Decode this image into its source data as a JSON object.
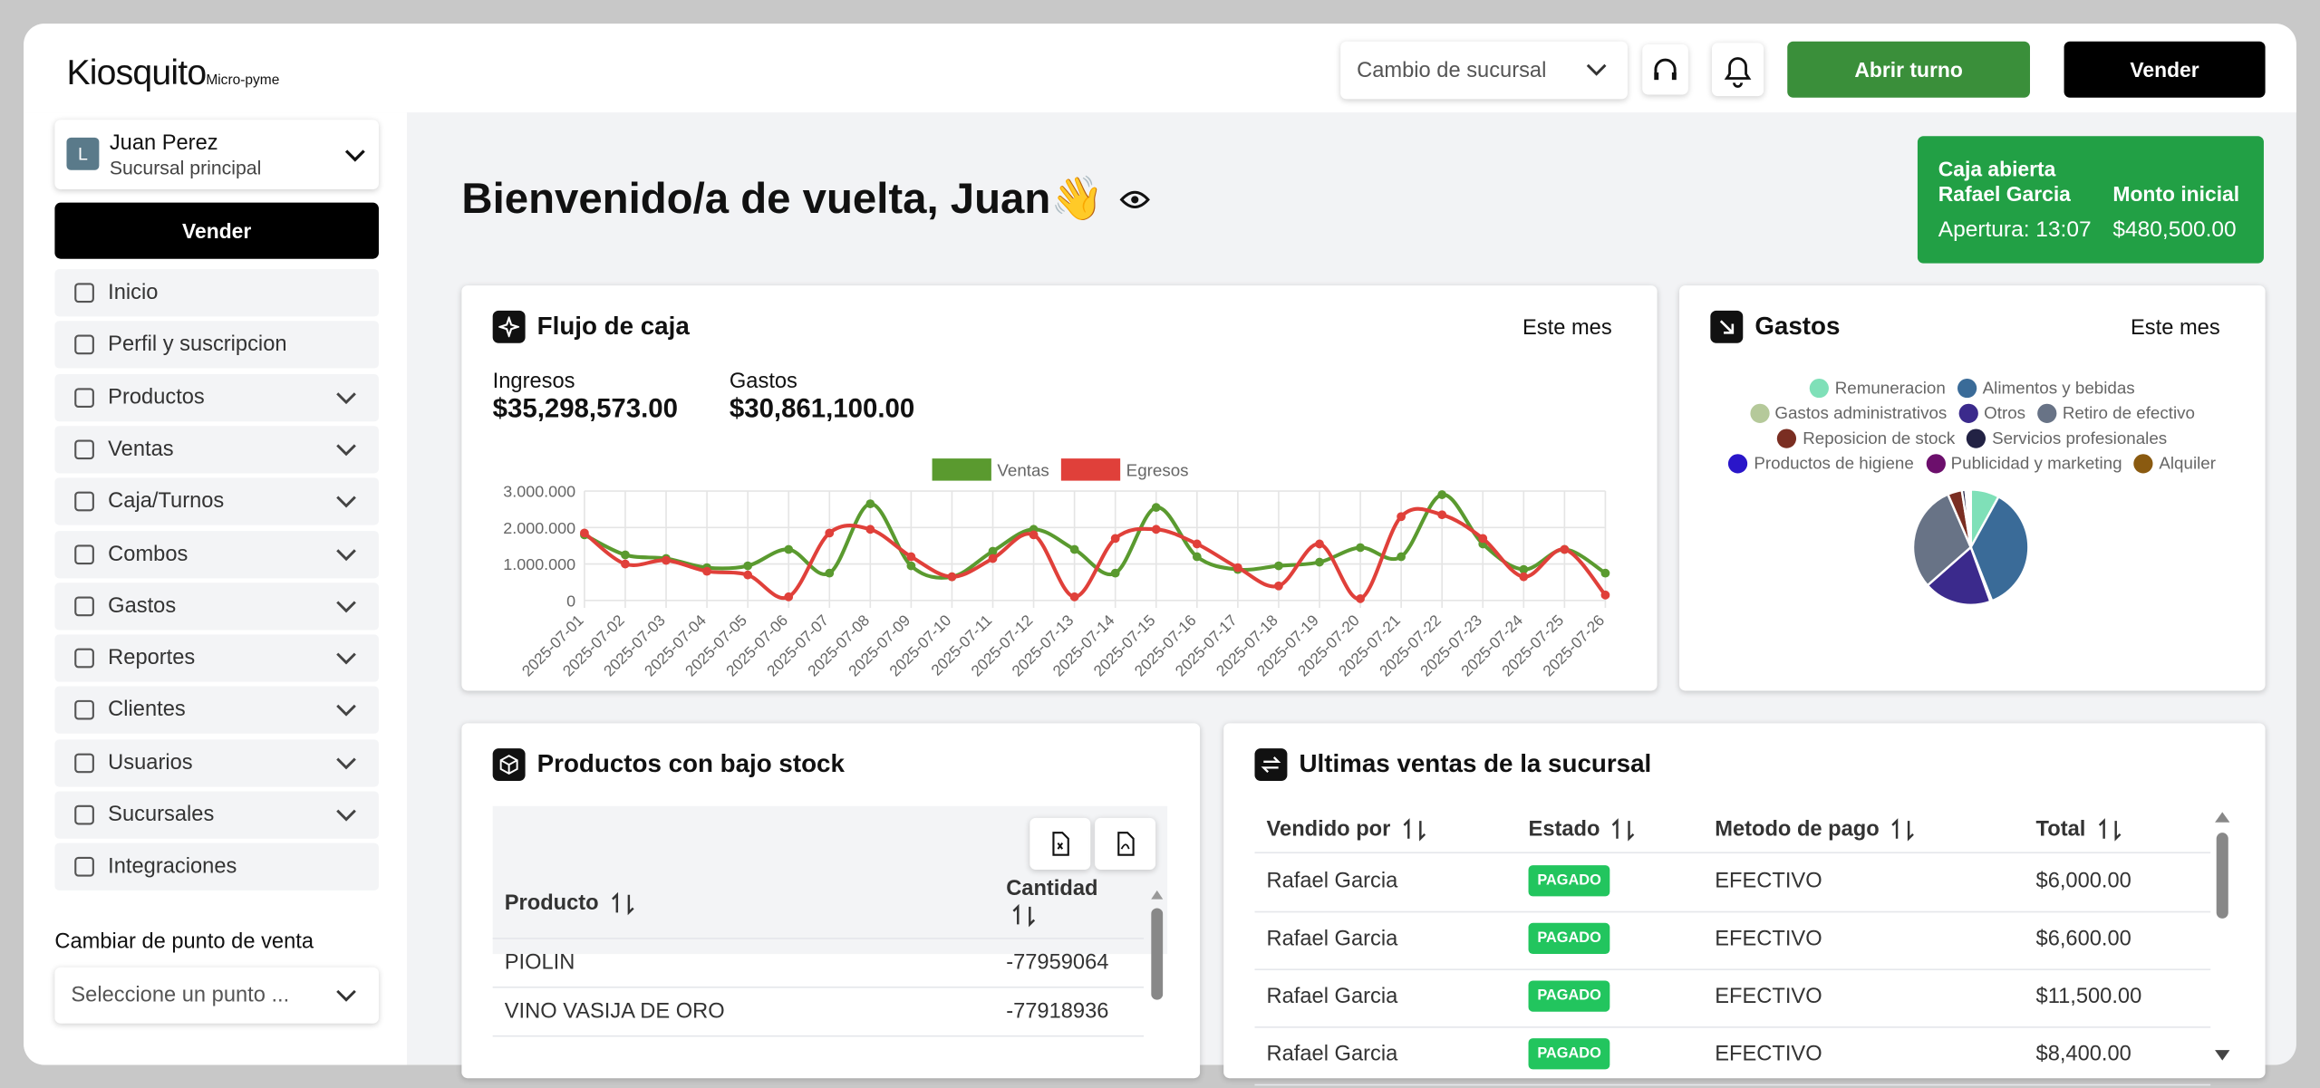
{
  "header": {
    "brand": "Kiosquito",
    "brand_sub": "Micro-pyme",
    "branch_select": "Cambio de sucursal",
    "open_shift": "Abrir turno",
    "sell": "Vender"
  },
  "sidebar": {
    "avatar": "L",
    "user_name": "Juan Perez",
    "user_branch": "Sucursal principal",
    "sell": "Vender",
    "menu": [
      {
        "label": "Inicio",
        "submenu": false
      },
      {
        "label": "Perfil y suscripcion",
        "submenu": false
      },
      {
        "label": "Productos",
        "submenu": true
      },
      {
        "label": "Ventas",
        "submenu": true
      },
      {
        "label": "Caja/Turnos",
        "submenu": true
      },
      {
        "label": "Combos",
        "submenu": true
      },
      {
        "label": "Gastos",
        "submenu": true
      },
      {
        "label": "Reportes",
        "submenu": true
      },
      {
        "label": "Clientes",
        "submenu": true
      },
      {
        "label": "Usuarios",
        "submenu": true
      },
      {
        "label": "Sucursales",
        "submenu": true
      },
      {
        "label": "Integraciones",
        "submenu": false
      }
    ],
    "pos_label": "Cambiar de punto de venta",
    "pos_placeholder": "Seleccione un punto ..."
  },
  "welcome": "Bienvenido/a de vuelta, Juan👋",
  "cash_box": {
    "status": "Caja abierta",
    "cashier": "Rafael Garcia",
    "opening": "Apertura: 13:07",
    "initial_label": "Monto inicial",
    "initial_amount": "$480,500.00"
  },
  "cash_flow": {
    "title": "Flujo de caja",
    "period": "Este mes",
    "income_label": "Ingresos",
    "income": "$35,298,573.00",
    "expense_label": "Gastos",
    "expense": "$30,861,100.00"
  },
  "expenses": {
    "title": "Gastos",
    "period": "Este mes"
  },
  "chart_data": [
    {
      "type": "line",
      "x": [
        "2025-07-01",
        "2025-07-02",
        "2025-07-03",
        "2025-07-04",
        "2025-07-05",
        "2025-07-06",
        "2025-07-07",
        "2025-07-08",
        "2025-07-09",
        "2025-07-10",
        "2025-07-11",
        "2025-07-12",
        "2025-07-13",
        "2025-07-14",
        "2025-07-15",
        "2025-07-16",
        "2025-07-17",
        "2025-07-18",
        "2025-07-19",
        "2025-07-20",
        "2025-07-21",
        "2025-07-22",
        "2025-07-23",
        "2025-07-24",
        "2025-07-25",
        "2025-07-26"
      ],
      "series": [
        {
          "name": "Ventas",
          "color": "#5a9a2f",
          "values": [
            1800000,
            1250000,
            1150000,
            900000,
            950000,
            1400000,
            750000,
            2650000,
            950000,
            650000,
            1350000,
            1950000,
            1400000,
            750000,
            2550000,
            1200000,
            850000,
            950000,
            1050000,
            1450000,
            1200000,
            2900000,
            1550000,
            850000,
            1400000,
            750000
          ]
        },
        {
          "name": "Egresos",
          "color": "#e0403a",
          "values": [
            1850000,
            1000000,
            1100000,
            800000,
            700000,
            100000,
            1850000,
            1950000,
            1200000,
            650000,
            1150000,
            1800000,
            100000,
            1700000,
            1950000,
            1550000,
            900000,
            400000,
            1550000,
            50000,
            2300000,
            2350000,
            1700000,
            650000,
            1400000,
            150000
          ]
        }
      ],
      "ylim": [
        0,
        3000000
      ],
      "yticks": [
        0,
        {
          "value": 1000000,
          "label": "1.000.000"
        },
        {
          "value": 2000000,
          "label": "2.000.000"
        },
        {
          "value": 3000000,
          "label": "3.000.000"
        }
      ],
      "grid": true
    },
    {
      "type": "pie",
      "categories": [
        "Remuneracion",
        "Alimentos y bebidas",
        "Gastos administrativos",
        "Otros",
        "Retiro de efectivo",
        "Reposicion de stock",
        "Servicios profesionales",
        "Productos de higiene",
        "Publicidad y marketing",
        "Alquiler"
      ],
      "values": [
        8,
        36,
        0.5,
        19,
        30,
        4,
        1,
        0.5,
        0.5,
        0.5
      ],
      "colors": [
        "#7fe0b8",
        "#3a6b98",
        "#b5c99a",
        "#3b2a8c",
        "#687386",
        "#7a2e22",
        "#222244",
        "#2a16c9",
        "#6c0f6c",
        "#8a5a10"
      ]
    }
  ],
  "low_stock": {
    "title": "Productos con bajo stock",
    "headers": [
      "Producto",
      "Cantidad"
    ],
    "rows": [
      [
        "PIOLIN",
        -77959064
      ],
      [
        "VINO VASIJA DE ORO",
        -77918936
      ]
    ]
  },
  "recent_sales": {
    "title": "Ultimas ventas de la sucursal",
    "headers": [
      "Vendido por",
      "Estado",
      "Metodo de pago",
      "Total"
    ],
    "rows": [
      [
        "Rafael Garcia",
        "PAGADO",
        "EFECTIVO",
        "$6,000.00"
      ],
      [
        "Rafael Garcia",
        "PAGADO",
        "EFECTIVO",
        "$6,600.00"
      ],
      [
        "Rafael Garcia",
        "PAGADO",
        "EFECTIVO",
        "$11,500.00"
      ],
      [
        "Rafael Garcia",
        "PAGADO",
        "EFECTIVO",
        "$8,400.00"
      ]
    ]
  }
}
